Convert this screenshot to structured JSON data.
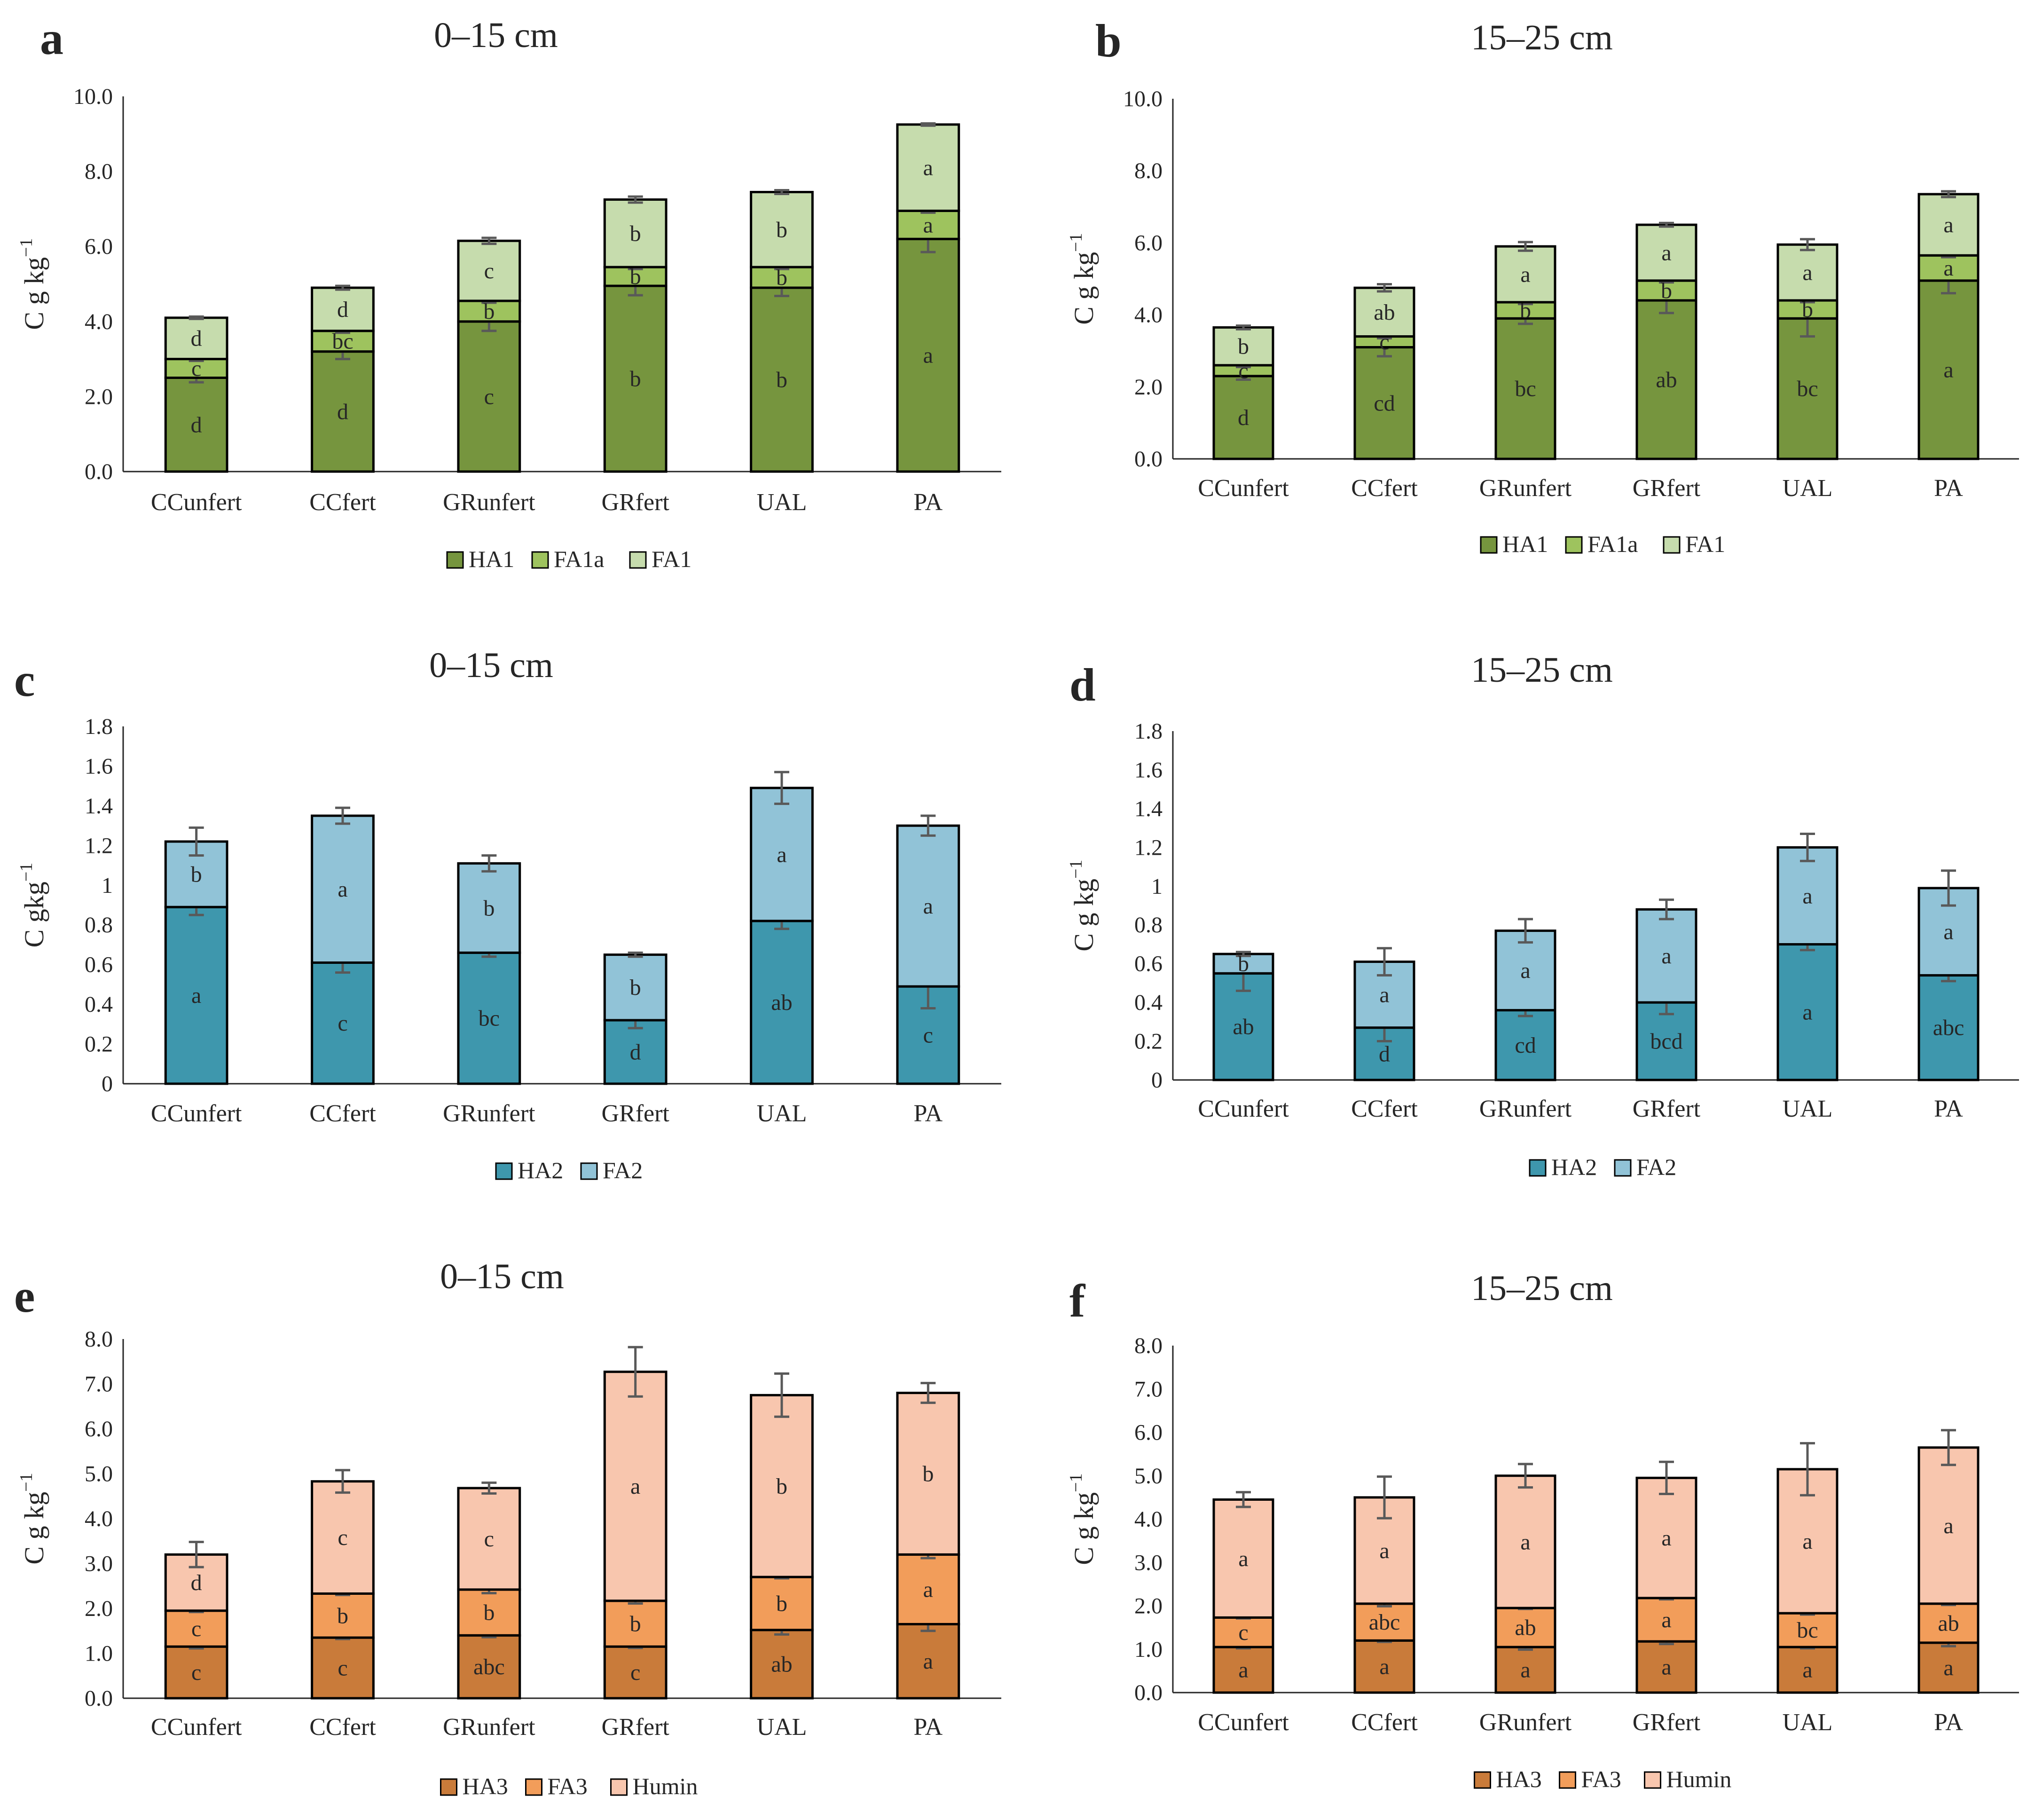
{
  "chart_data": [
    {
      "panel": "a",
      "type": "bar",
      "stacked": true,
      "title": "0–15 cm",
      "ylabel": "C g kg",
      "ylabel_sup": "−1",
      "ylim": [
        0,
        10
      ],
      "yticks": [
        "0.0",
        "2.0",
        "4.0",
        "6.0",
        "8.0",
        "10.0"
      ],
      "categories": [
        "CCunfert",
        "CCfert",
        "GRunfert",
        "GRfert",
        "UAL",
        "PA"
      ],
      "series": [
        {
          "name": "HA1",
          "color": "#76953e",
          "values": [
            2.5,
            3.2,
            4.0,
            4.95,
            4.9,
            6.2
          ],
          "errors": [
            0.12,
            0.2,
            0.25,
            0.25,
            0.22,
            0.35
          ],
          "labels": [
            "d",
            "d",
            "c",
            "b",
            "b",
            "a"
          ]
        },
        {
          "name": "FA1a",
          "color": "#9ec35e",
          "values": [
            0.5,
            0.55,
            0.55,
            0.5,
            0.55,
            0.75
          ],
          "errors": [
            0.05,
            0.05,
            0.05,
            0.05,
            0.05,
            0.05
          ],
          "labels": [
            "c",
            "bc",
            "b",
            "b",
            "b",
            "a"
          ]
        },
        {
          "name": "FA1",
          "color": "#c6dcad",
          "values": [
            1.1,
            1.15,
            1.6,
            1.8,
            2.0,
            2.3
          ],
          "errors": [
            0.03,
            0.05,
            0.08,
            0.08,
            0.05,
            0.03
          ],
          "labels": [
            "d",
            "d",
            "c",
            "b",
            "b",
            "a"
          ]
        }
      ]
    },
    {
      "panel": "b",
      "type": "bar",
      "stacked": true,
      "title": "15–25 cm",
      "ylabel": "C g kg",
      "ylabel_sup": "−1",
      "ylim": [
        0,
        10
      ],
      "yticks": [
        "0.0",
        "2.0",
        "4.0",
        "6.0",
        "8.0",
        "10.0"
      ],
      "categories": [
        "CCunfert",
        "CCfert",
        "GRunfert",
        "GRfert",
        "UAL",
        "PA"
      ],
      "series": [
        {
          "name": "HA1",
          "color": "#76953e",
          "values": [
            2.3,
            3.1,
            3.9,
            4.4,
            3.9,
            4.95
          ],
          "errors": [
            0.1,
            0.25,
            0.15,
            0.35,
            0.5,
            0.35
          ],
          "labels": [
            "d",
            "cd",
            "bc",
            "ab",
            "bc",
            "a"
          ]
        },
        {
          "name": "FA1a",
          "color": "#9ec35e",
          "values": [
            0.3,
            0.3,
            0.45,
            0.55,
            0.5,
            0.7
          ],
          "errors": [
            0.05,
            0.05,
            0.05,
            0.05,
            0.05,
            0.05
          ],
          "labels": [
            "c",
            "c",
            "b",
            "b",
            "b",
            "a"
          ]
        },
        {
          "name": "FA1",
          "color": "#c6dcad",
          "values": [
            1.05,
            1.35,
            1.55,
            1.55,
            1.55,
            1.7
          ],
          "errors": [
            0.05,
            0.1,
            0.12,
            0.05,
            0.15,
            0.08
          ],
          "labels": [
            "b",
            "ab",
            "a",
            "a",
            "a",
            "a"
          ]
        }
      ]
    },
    {
      "panel": "c",
      "type": "bar",
      "stacked": true,
      "title": "0–15 cm",
      "ylabel": "C gkg",
      "ylabel_sup": "−1",
      "ylim": [
        0,
        1.8
      ],
      "yticks": [
        "0",
        "0.2",
        "0.4",
        "0.6",
        "0.8",
        "1",
        "1.2",
        "1.4",
        "1.6",
        "1.8"
      ],
      "categories": [
        "CCunfert",
        "CCfert",
        "GRunfert",
        "GRfert",
        "UAL",
        "PA"
      ],
      "series": [
        {
          "name": "HA2",
          "color": "#3e97ad",
          "values": [
            0.89,
            0.61,
            0.66,
            0.32,
            0.82,
            0.49
          ],
          "errors": [
            0.04,
            0.05,
            0.02,
            0.04,
            0.04,
            0.11
          ],
          "labels": [
            "a",
            "c",
            "bc",
            "d",
            "ab",
            "c"
          ]
        },
        {
          "name": "FA2",
          "color": "#91c3d7",
          "values": [
            0.33,
            0.74,
            0.45,
            0.33,
            0.67,
            0.81
          ],
          "errors": [
            0.07,
            0.04,
            0.04,
            0.01,
            0.08,
            0.05
          ],
          "labels": [
            "b",
            "a",
            "b",
            "b",
            "a",
            "a"
          ]
        }
      ]
    },
    {
      "panel": "d",
      "type": "bar",
      "stacked": true,
      "title": "15–25 cm",
      "ylabel": "C g kg",
      "ylabel_sup": "−1",
      "ylim": [
        0,
        1.8
      ],
      "yticks": [
        "0",
        "0.2",
        "0.4",
        "0.6",
        "0.8",
        "1",
        "1.2",
        "1.4",
        "1.6",
        "1.8"
      ],
      "categories": [
        "CCunfert",
        "CCfert",
        "GRunfert",
        "GRfert",
        "UAL",
        "PA"
      ],
      "series": [
        {
          "name": "HA2",
          "color": "#3e97ad",
          "values": [
            0.55,
            0.27,
            0.36,
            0.4,
            0.7,
            0.54
          ],
          "errors": [
            0.09,
            0.07,
            0.03,
            0.06,
            0.03,
            0.03
          ],
          "labels": [
            "ab",
            "d",
            "cd",
            "bcd",
            "a",
            "abc"
          ]
        },
        {
          "name": "FA2",
          "color": "#91c3d7",
          "values": [
            0.1,
            0.34,
            0.41,
            0.48,
            0.5,
            0.45
          ],
          "errors": [
            0.01,
            0.07,
            0.06,
            0.05,
            0.07,
            0.09
          ],
          "labels": [
            "b",
            "a",
            "a",
            "a",
            "a",
            "a"
          ]
        }
      ]
    },
    {
      "panel": "e",
      "type": "bar",
      "stacked": true,
      "title": "0–15 cm",
      "ylabel": "C g kg",
      "ylabel_sup": "−1",
      "ylim": [
        0,
        8
      ],
      "yticks": [
        "0.0",
        "1.0",
        "2.0",
        "3.0",
        "4.0",
        "5.0",
        "6.0",
        "7.0",
        "8.0"
      ],
      "categories": [
        "CCunfert",
        "CCfert",
        "GRunfert",
        "GRfert",
        "UAL",
        "PA"
      ],
      "series": [
        {
          "name": "HA3",
          "color": "#c97b3a",
          "values": [
            1.15,
            1.35,
            1.4,
            1.15,
            1.52,
            1.65
          ],
          "errors": [
            0.04,
            0.03,
            0.04,
            0.03,
            0.1,
            0.15
          ],
          "labels": [
            "c",
            "c",
            "abc",
            "c",
            "ab",
            "a"
          ]
        },
        {
          "name": "FA3",
          "color": "#f29d5a",
          "values": [
            0.8,
            0.98,
            1.02,
            1.02,
            1.18,
            1.55
          ],
          "errors": [
            0.03,
            0.03,
            0.08,
            0.06,
            0.03,
            0.08
          ],
          "labels": [
            "c",
            "b",
            "b",
            "b",
            "b",
            "a"
          ]
        },
        {
          "name": "Humin",
          "color": "#f8c6ae",
          "values": [
            1.25,
            2.5,
            2.26,
            5.1,
            4.05,
            3.6
          ],
          "errors": [
            0.28,
            0.25,
            0.12,
            0.55,
            0.48,
            0.22
          ],
          "labels": [
            "d",
            "c",
            "c",
            "a",
            "b",
            "b"
          ]
        }
      ]
    },
    {
      "panel": "f",
      "type": "bar",
      "stacked": true,
      "title": "15–25 cm",
      "ylabel": "C g kg",
      "ylabel_sup": "−1",
      "ylim": [
        0,
        8
      ],
      "yticks": [
        "0.0",
        "1.0",
        "2.0",
        "3.0",
        "4.0",
        "5.0",
        "6.0",
        "7.0",
        "8.0"
      ],
      "categories": [
        "CCunfert",
        "CCfert",
        "GRunfert",
        "GRfert",
        "UAL",
        "PA"
      ],
      "series": [
        {
          "name": "HA3",
          "color": "#c97b3a",
          "values": [
            1.05,
            1.2,
            1.05,
            1.18,
            1.05,
            1.15
          ],
          "errors": [
            0.03,
            0.03,
            0.06,
            0.06,
            0.03,
            0.08
          ],
          "labels": [
            "a",
            "a",
            "a",
            "a",
            "a",
            "a"
          ]
        },
        {
          "name": "FA3",
          "color": "#f29d5a",
          "values": [
            0.68,
            0.85,
            0.9,
            1.0,
            0.78,
            0.9
          ],
          "errors": [
            0.02,
            0.06,
            0.02,
            0.03,
            0.03,
            0.03
          ],
          "labels": [
            "c",
            "abc",
            "ab",
            "a",
            "bc",
            "ab"
          ]
        },
        {
          "name": "Humin",
          "color": "#f8c6ae",
          "values": [
            2.72,
            2.45,
            3.05,
            2.77,
            3.32,
            3.6
          ],
          "errors": [
            0.17,
            0.48,
            0.27,
            0.37,
            0.6,
            0.4
          ],
          "labels": [
            "a",
            "a",
            "a",
            "a",
            "a",
            "a"
          ]
        }
      ]
    }
  ]
}
